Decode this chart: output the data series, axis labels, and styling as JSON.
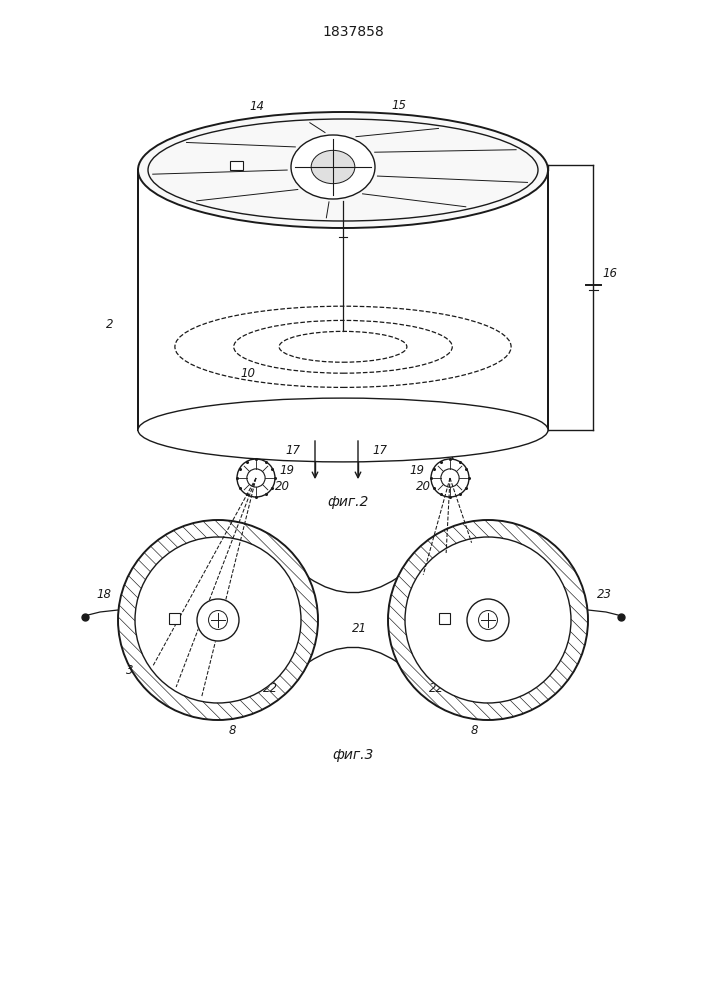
{
  "title": "1837858",
  "fig2_label": "фиг.2",
  "fig3_label": "фиг.3",
  "bg_color": "#ffffff",
  "line_color": "#1a1a1a"
}
